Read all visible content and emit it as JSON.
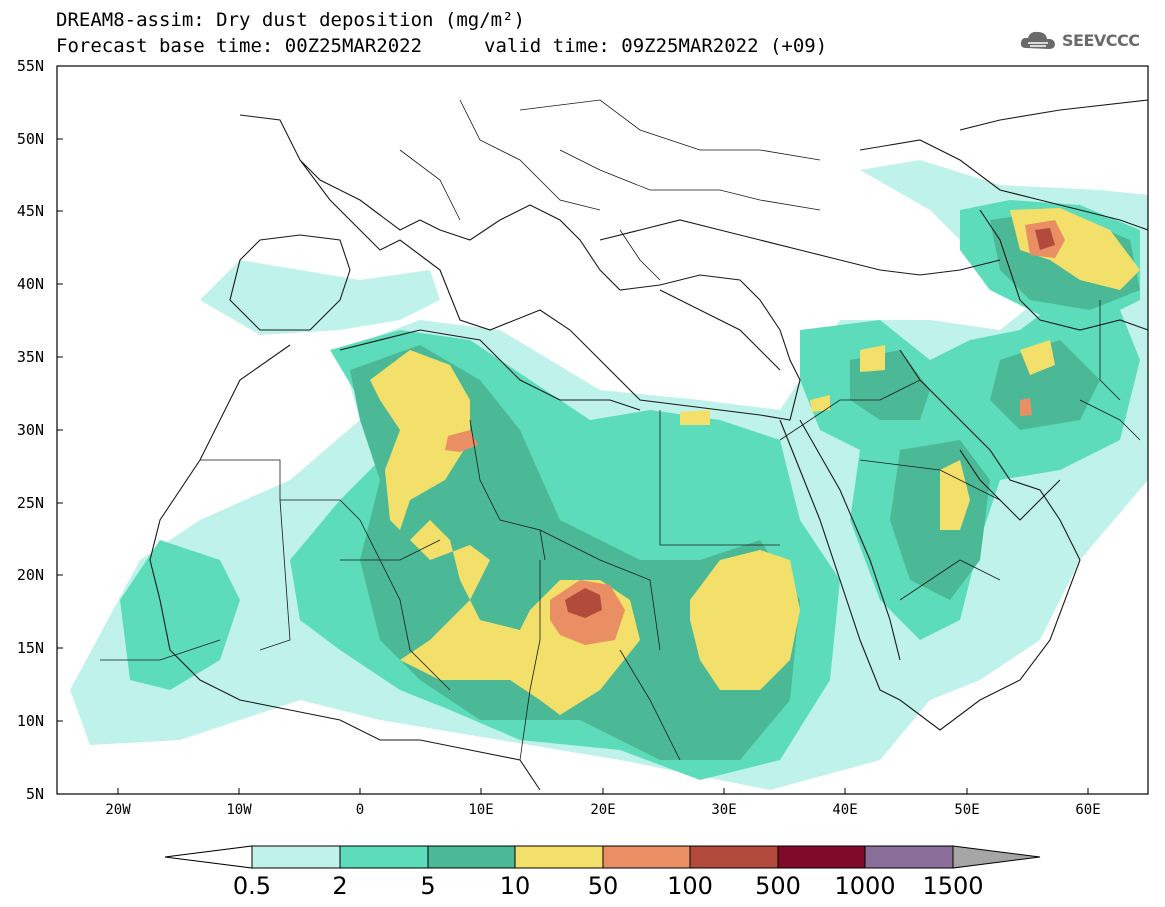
{
  "header": {
    "title_line1": "DREAM8-assim: Dry dust deposition (mg/m²)",
    "base_time": "Forecast base time: 00Z25MAR2022",
    "valid_time": "valid time: 09Z25MAR2022 (+09)",
    "logo_text": "SEEVCCC"
  },
  "axes": {
    "lat_labels": [
      "55N",
      "50N",
      "45N",
      "40N",
      "35N",
      "30N",
      "25N",
      "20N",
      "15N",
      "10N",
      "5N"
    ],
    "lon_labels": [
      "20W",
      "10W",
      "0",
      "10E",
      "20E",
      "30E",
      "40E",
      "50E",
      "60E"
    ],
    "lat_range": [
      5,
      55
    ],
    "lon_range": [
      -25,
      65
    ]
  },
  "colorbar": {
    "labels": [
      "0.5",
      "2",
      "5",
      "10",
      "50",
      "100",
      "500",
      "1000",
      "1500"
    ],
    "colors": [
      "#bff2ea",
      "#5ddcbb",
      "#4cb996",
      "#f3e06a",
      "#ea8e63",
      "#b24b3c",
      "#800a2a",
      "#8b6d9a"
    ],
    "under_color": "#ffffff",
    "over_color": "#a6a6a6"
  },
  "colors": {
    "land_border": "#1a1a1a",
    "frame": "#000000"
  }
}
